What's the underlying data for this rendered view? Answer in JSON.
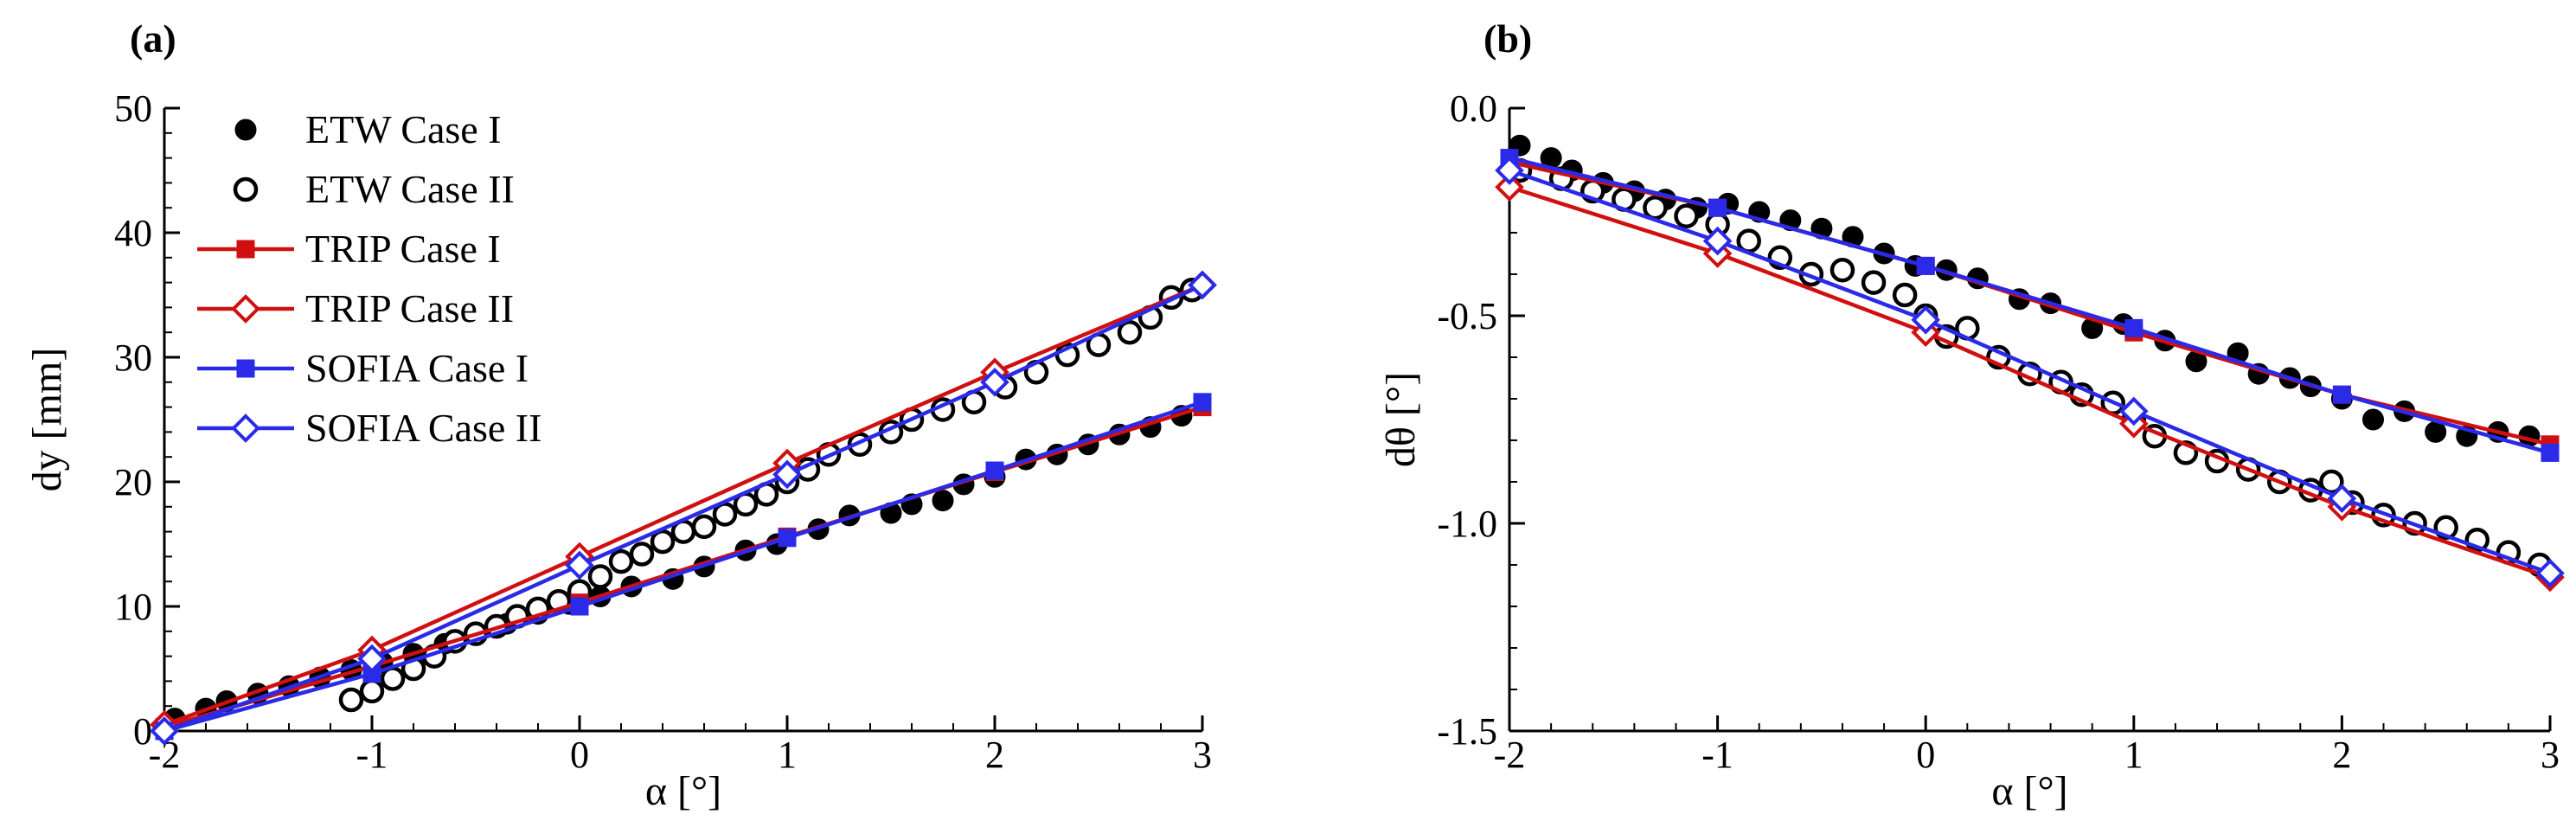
{
  "chart_data": [
    {
      "panel_label": "(a)",
      "type": "scatter",
      "xlabel": "α [°]",
      "ylabel": "dy [mm]",
      "xlim": [
        -2,
        3
      ],
      "ylim": [
        0,
        50
      ],
      "xticks": [
        -2,
        -1,
        0,
        1,
        2,
        3
      ],
      "xtick_labels": [
        "-2",
        "-1",
        "0",
        "1",
        "2",
        "3"
      ],
      "yticks": [
        0,
        10,
        20,
        30,
        40,
        50
      ],
      "ytick_labels": [
        "0",
        "10",
        "20",
        "30",
        "40",
        "50"
      ],
      "legend": [
        "ETW Case I",
        "ETW Case II",
        "TRIP Case I",
        "TRIP Case II",
        "SOFIA Case I",
        "SOFIA Case II"
      ],
      "legend_position": "top-left",
      "series": [
        {
          "name": "ETW Case I",
          "style": "filled-circle",
          "x": [
            -1.95,
            -1.8,
            -1.7,
            -1.55,
            -1.4,
            -1.25,
            -1.1,
            -0.95,
            -0.8,
            -0.65,
            -0.5,
            -0.35,
            -0.2,
            -0.05,
            0.1,
            0.25,
            0.45,
            0.6,
            0.8,
            0.95,
            1.15,
            1.3,
            1.5,
            1.6,
            1.75,
            1.85,
            2.0,
            2.15,
            2.3,
            2.45,
            2.6,
            2.75,
            2.9
          ],
          "y": [
            1.0,
            1.8,
            2.4,
            3.0,
            3.6,
            4.3,
            4.9,
            5.5,
            6.2,
            7.0,
            7.8,
            8.6,
            9.4,
            10.2,
            10.8,
            11.6,
            12.2,
            13.2,
            14.5,
            15.0,
            16.2,
            17.3,
            17.5,
            18.2,
            18.5,
            19.8,
            20.4,
            21.8,
            22.2,
            23.0,
            23.8,
            24.4,
            25.3
          ]
        },
        {
          "name": "ETW Case II",
          "style": "open-circle",
          "x": [
            -1.1,
            -1.0,
            -0.9,
            -0.8,
            -0.7,
            -0.6,
            -0.5,
            -0.4,
            -0.3,
            -0.2,
            -0.1,
            0.0,
            0.1,
            0.2,
            0.3,
            0.4,
            0.5,
            0.6,
            0.7,
            0.8,
            0.9,
            1.0,
            1.1,
            1.2,
            1.35,
            1.5,
            1.6,
            1.75,
            1.9,
            2.05,
            2.2,
            2.35,
            2.5,
            2.65,
            2.75,
            2.85,
            2.95
          ],
          "y": [
            2.5,
            3.2,
            4.2,
            5.0,
            6.0,
            7.2,
            7.8,
            8.4,
            9.2,
            9.8,
            10.4,
            11.2,
            12.4,
            13.6,
            14.2,
            15.2,
            16.0,
            16.4,
            17.4,
            18.2,
            19.0,
            20.0,
            21.0,
            22.2,
            23.0,
            24.0,
            25.0,
            25.8,
            26.4,
            27.6,
            28.8,
            30.2,
            31.0,
            32.0,
            33.2,
            34.8,
            35.4
          ]
        },
        {
          "name": "TRIP Case I",
          "style": "red-line-filled-square",
          "x": [
            -2,
            -1,
            0,
            1,
            2,
            3
          ],
          "y": [
            0.3,
            5.2,
            10.3,
            15.6,
            20.8,
            26.0
          ]
        },
        {
          "name": "TRIP Case II",
          "style": "red-line-open-diamond",
          "x": [
            -2,
            -1,
            0,
            1,
            2,
            3
          ],
          "y": [
            0.5,
            6.5,
            14.0,
            21.5,
            28.8,
            35.8
          ]
        },
        {
          "name": "SOFIA Case I",
          "style": "blue-line-filled-square",
          "x": [
            -2,
            -1,
            0,
            1,
            2,
            3
          ],
          "y": [
            0.0,
            4.6,
            10.0,
            15.5,
            20.9,
            26.4
          ]
        },
        {
          "name": "SOFIA Case II",
          "style": "blue-line-open-diamond",
          "x": [
            -2,
            -1,
            0,
            1,
            2,
            3
          ],
          "y": [
            0.0,
            5.8,
            13.3,
            20.6,
            28.0,
            35.8
          ]
        }
      ]
    },
    {
      "panel_label": "(b)",
      "type": "scatter",
      "xlabel": "α [°]",
      "ylabel": "dθ [°]",
      "xlim": [
        -2,
        3
      ],
      "ylim": [
        -1.5,
        0.0
      ],
      "xticks": [
        -2,
        -1,
        0,
        1,
        2,
        3
      ],
      "xtick_labels": [
        "-2",
        "-1",
        "0",
        "1",
        "2",
        "3"
      ],
      "yticks": [
        -1.5,
        -1.0,
        -0.5,
        0.0
      ],
      "ytick_labels": [
        "-1.5",
        "-1.0",
        "-0.5",
        "0.0"
      ],
      "series": [
        {
          "name": "ETW Case I",
          "style": "filled-circle",
          "x": [
            -1.95,
            -1.8,
            -1.7,
            -1.55,
            -1.4,
            -1.25,
            -1.1,
            -0.95,
            -0.8,
            -0.65,
            -0.5,
            -0.35,
            -0.2,
            -0.05,
            0.1,
            0.25,
            0.45,
            0.6,
            0.8,
            0.95,
            1.15,
            1.3,
            1.5,
            1.6,
            1.75,
            1.85,
            2.0,
            2.15,
            2.3,
            2.45,
            2.6,
            2.75,
            2.9
          ],
          "y": [
            -0.09,
            -0.12,
            -0.15,
            -0.18,
            -0.2,
            -0.22,
            -0.24,
            -0.23,
            -0.25,
            -0.27,
            -0.29,
            -0.31,
            -0.35,
            -0.38,
            -0.39,
            -0.41,
            -0.46,
            -0.47,
            -0.53,
            -0.52,
            -0.56,
            -0.61,
            -0.59,
            -0.64,
            -0.65,
            -0.67,
            -0.7,
            -0.75,
            -0.73,
            -0.78,
            -0.79,
            -0.78,
            -0.79
          ]
        },
        {
          "name": "ETW Case II",
          "style": "open-circle",
          "x": [
            -1.95,
            -1.75,
            -1.6,
            -1.45,
            -1.3,
            -1.15,
            -1.0,
            -0.85,
            -0.7,
            -0.55,
            -0.4,
            -0.25,
            -0.1,
            0.0,
            0.1,
            0.2,
            0.35,
            0.5,
            0.65,
            0.75,
            0.9,
            1.0,
            1.1,
            1.25,
            1.4,
            1.55,
            1.7,
            1.85,
            1.95,
            2.05,
            2.2,
            2.35,
            2.5,
            2.65,
            2.8,
            2.95
          ],
          "y": [
            -0.15,
            -0.17,
            -0.2,
            -0.22,
            -0.24,
            -0.26,
            -0.28,
            -0.32,
            -0.36,
            -0.4,
            -0.39,
            -0.42,
            -0.45,
            -0.5,
            -0.55,
            -0.53,
            -0.6,
            -0.64,
            -0.66,
            -0.69,
            -0.71,
            -0.75,
            -0.79,
            -0.83,
            -0.85,
            -0.87,
            -0.9,
            -0.92,
            -0.9,
            -0.95,
            -0.98,
            -1.0,
            -1.01,
            -1.04,
            -1.07,
            -1.1
          ]
        },
        {
          "name": "TRIP Case I",
          "style": "red-line-filled-square",
          "x": [
            -2,
            -1,
            0,
            1,
            2,
            3
          ],
          "y": [
            -0.13,
            -0.24,
            -0.38,
            -0.54,
            -0.69,
            -0.81
          ]
        },
        {
          "name": "TRIP Case II",
          "style": "red-line-open-diamond",
          "x": [
            -2,
            -1,
            0,
            1,
            2,
            3
          ],
          "y": [
            -0.19,
            -0.35,
            -0.54,
            -0.76,
            -0.96,
            -1.13
          ]
        },
        {
          "name": "SOFIA Case I",
          "style": "blue-line-filled-square",
          "x": [
            -2,
            -1,
            0,
            1,
            2,
            3
          ],
          "y": [
            -0.12,
            -0.24,
            -0.38,
            -0.53,
            -0.69,
            -0.83
          ]
        },
        {
          "name": "SOFIA Case II",
          "style": "blue-line-open-diamond",
          "x": [
            -2,
            -1,
            0,
            1,
            2,
            3
          ],
          "y": [
            -0.15,
            -0.32,
            -0.51,
            -0.73,
            -0.94,
            -1.12
          ]
        }
      ]
    }
  ],
  "colors": {
    "red": "#d01010",
    "blue": "#2a2ae8",
    "black": "#000000"
  }
}
